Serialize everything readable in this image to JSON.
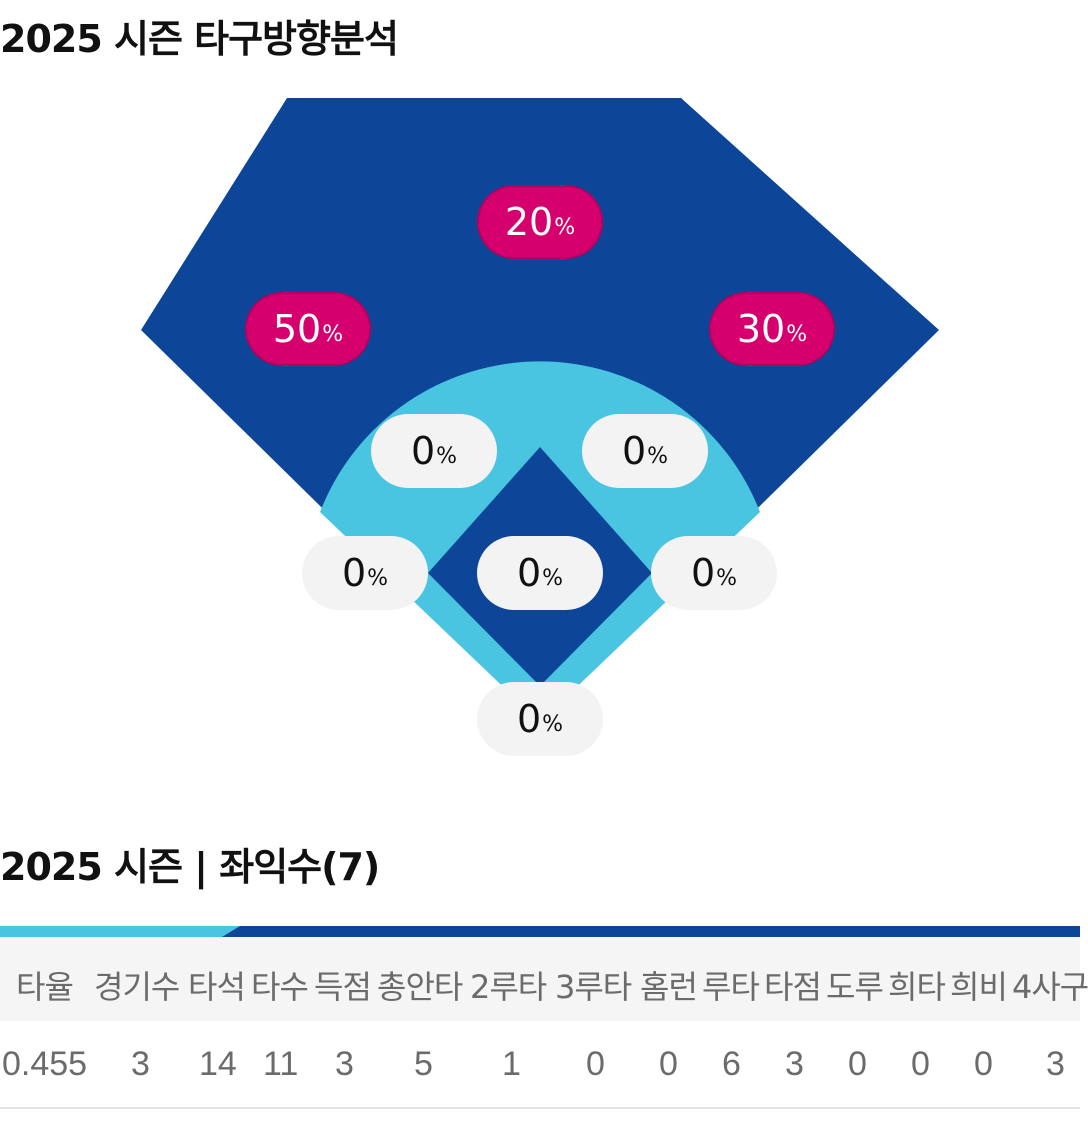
{
  "header": {
    "title": "2025 시즌 타구방향분석"
  },
  "spray": {
    "zones": [
      {
        "id": "center-field",
        "value": "20",
        "unit": "%",
        "hot": true
      },
      {
        "id": "left-field",
        "value": "50",
        "unit": "%",
        "hot": true
      },
      {
        "id": "right-field",
        "value": "30",
        "unit": "%",
        "hot": true
      },
      {
        "id": "shortstop",
        "value": "0",
        "unit": "%",
        "hot": false
      },
      {
        "id": "second-base",
        "value": "0",
        "unit": "%",
        "hot": false
      },
      {
        "id": "third-base",
        "value": "0",
        "unit": "%",
        "hot": false
      },
      {
        "id": "pitcher",
        "value": "0",
        "unit": "%",
        "hot": false
      },
      {
        "id": "first-base",
        "value": "0",
        "unit": "%",
        "hot": false
      },
      {
        "id": "catcher",
        "value": "0",
        "unit": "%",
        "hot": false
      }
    ],
    "colors": {
      "field": "#0d4698",
      "infield_dirt": "#49c5e2",
      "hot": "#d5006d",
      "cold": "#f3f3f3"
    }
  },
  "stats": {
    "title": "2025 시즌 | 좌익수(7)",
    "headers": [
      "타율",
      "경기수",
      "타석",
      "타수",
      "득점",
      "총안타",
      "2루타",
      "3루타",
      "홈런",
      "루타",
      "타점",
      "도루",
      "희타",
      "희비",
      "4사구"
    ],
    "values": [
      "0.455",
      "3",
      "14",
      "11",
      "3",
      "5",
      "1",
      "0",
      "0",
      "6",
      "3",
      "0",
      "0",
      "0",
      "3"
    ]
  }
}
